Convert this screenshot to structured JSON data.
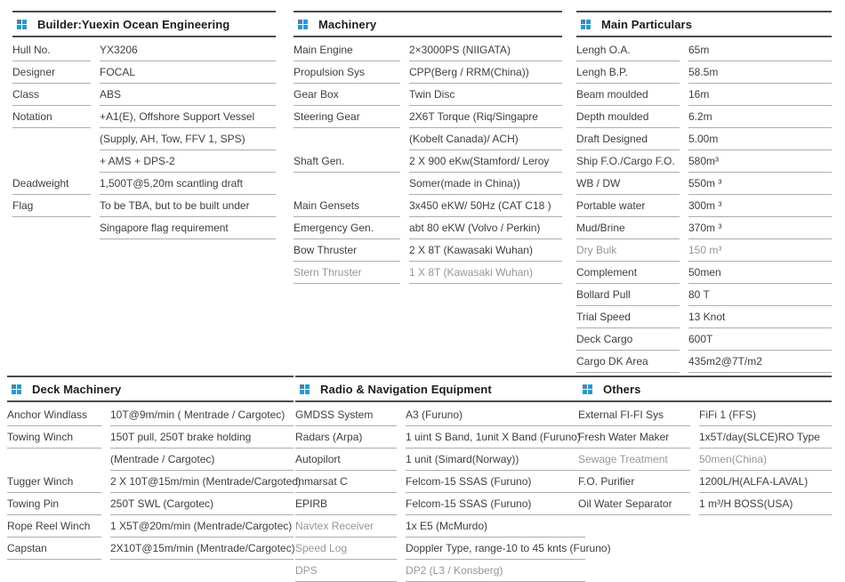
{
  "theme": {
    "background": "#ffffff",
    "icon_blue": "#1e9bd7",
    "icon_muted": "#5f7d97",
    "header_rule": "#4b4b4b",
    "row_line": "#adadad",
    "text_dark": "#3e3e3e",
    "text_muted": "#969696",
    "title_color": "#1c1c1c"
  },
  "sections": [
    {
      "id": "builder",
      "title": "Builder:Yuexin Ocean Engineering",
      "entries": [
        {
          "label": "Hull No.",
          "lines": [
            "YX3206"
          ]
        },
        {
          "label": "Designer",
          "lines": [
            "FOCAL"
          ]
        },
        {
          "label": "Class",
          "lines": [
            "ABS"
          ]
        },
        {
          "label": "Notation",
          "lines": [
            "+A1(E), Offshore Support Vessel",
            "(Supply, AH, Tow, FFV 1, SPS)",
            "+ AMS + DPS-2"
          ]
        },
        {
          "label": "Deadweight",
          "lines": [
            "1,500T@5,20m scantling draft"
          ]
        },
        {
          "label": "Flag",
          "lines": [
            "To be TBA, but to be built under",
            "Singapore flag requirement"
          ]
        }
      ]
    },
    {
      "id": "machinery",
      "title": "Machinery",
      "entries": [
        {
          "label": "Main Engine",
          "lines": [
            "2×3000PS (NIIGATA)"
          ]
        },
        {
          "label": "Propulsion Sys",
          "lines": [
            "CPP(Berg / RRM(China))"
          ]
        },
        {
          "label": "Gear Box",
          "lines": [
            "Twin Disc"
          ]
        },
        {
          "label": "Steering Gear",
          "lines": [
            "2X6T Torque (Riq/Singapre",
            "(Kobelt Canada)/ ACH)"
          ]
        },
        {
          "label": "Shaft Gen.",
          "lines": [
            "2 X 900 eKw(Stamford/ Leroy",
            "Somer(made in China))"
          ]
        },
        {
          "label": "Main Gensets",
          "lines": [
            "3x450 eKW/ 50Hz (CAT C18 )"
          ]
        },
        {
          "label": "Emergency Gen.",
          "lines": [
            "abt 80 eKW (Volvo / Perkin)"
          ]
        },
        {
          "label": "Bow Thruster",
          "lines": [
            "2 X 8T (Kawasaki Wuhan)"
          ]
        },
        {
          "label": "Stern Thruster",
          "lines": [
            "1 X 8T (Kawasaki Wuhan)"
          ],
          "muted": true
        }
      ]
    },
    {
      "id": "particulars",
      "title": "Main Particulars",
      "entries": [
        {
          "label": "Lengh O.A.",
          "lines": [
            "65m"
          ]
        },
        {
          "label": "Lengh B.P.",
          "lines": [
            "58.5m"
          ]
        },
        {
          "label": "Beam moulded",
          "lines": [
            "16m"
          ]
        },
        {
          "label": "Depth moulded",
          "lines": [
            "6.2m"
          ]
        },
        {
          "label": "Draft Designed",
          "lines": [
            "5.00m"
          ]
        },
        {
          "label": "Ship F.O./Cargo F.O.",
          "lines": [
            "580m³"
          ]
        },
        {
          "label": "WB / DW",
          "lines": [
            "550m ³"
          ]
        },
        {
          "label": "Portable water",
          "lines": [
            "300m ³"
          ]
        },
        {
          "label": "Mud/Brine",
          "lines": [
            "370m ³"
          ]
        },
        {
          "label": "Dry Bulk",
          "lines": [
            "150 m³"
          ],
          "muted": true
        },
        {
          "label": "Complement",
          "lines": [
            "50men"
          ]
        },
        {
          "label": "Bollard Pull",
          "lines": [
            "80 T"
          ]
        },
        {
          "label": "Trial Speed",
          "lines": [
            "13 Knot"
          ]
        },
        {
          "label": "Deck Cargo",
          "lines": [
            "600T"
          ]
        },
        {
          "label": "Cargo DK Area",
          "lines": [
            "435m2@7T/m2"
          ]
        }
      ]
    },
    {
      "id": "deck",
      "title": "Deck Machinery",
      "entries": [
        {
          "label": "Anchor Windlass",
          "lines": [
            "10T@9m/min ( Mentrade / Cargotec)"
          ]
        },
        {
          "label": "Towing Winch",
          "lines": [
            "150T pull, 250T brake holding",
            "(Mentrade / Cargotec)"
          ]
        },
        {
          "label": "Tugger Winch",
          "lines": [
            "2 X 10T@15m/min (Mentrade/Cargotec)"
          ]
        },
        {
          "label": "Towing Pin",
          "lines": [
            "250T SWL (Cargotec)"
          ]
        },
        {
          "label": "Rope Reel Winch",
          "lines": [
            "1 X5T@20m/min (Mentrade/Cargotec)"
          ]
        },
        {
          "label": "Capstan",
          "lines": [
            "2X10T@15m/min (Mentrade/Cargotec)"
          ]
        }
      ]
    },
    {
      "id": "radio",
      "title": "Radio & Navigation Equipment",
      "entries": [
        {
          "label": "GMDSS System",
          "lines": [
            "A3 (Furuno)"
          ]
        },
        {
          "label": "Radars (Arpa)",
          "lines": [
            "1 uint S Band, 1unit X Band (Furuno)"
          ]
        },
        {
          "label": "Autopilort",
          "lines": [
            "1 unit (Simard(Norway))"
          ]
        },
        {
          "label": "Inmarsat C",
          "lines": [
            "Felcom-15 SSAS (Furuno)"
          ]
        },
        {
          "label": "EPIRB",
          "lines": [
            "Felcom-15 SSAS (Furuno)"
          ]
        },
        {
          "label": "Navtex Receiver",
          "lines": [
            "1x E5 (McMurdo)"
          ],
          "label_muted": true
        },
        {
          "label": "Speed Log",
          "lines": [
            "Doppler Type, range-10 to 45 knts (Furuno)"
          ],
          "label_muted": true
        },
        {
          "label": "DPS",
          "lines": [
            "DP2 (L3 / Konsberg)"
          ],
          "muted": true
        }
      ]
    },
    {
      "id": "others",
      "title": "Others",
      "entries": [
        {
          "label": "External FI-FI Sys",
          "lines": [
            "FiFi 1 (FFS)"
          ]
        },
        {
          "label": "Fresh Water Maker",
          "lines": [
            "1x5T/day(SLCE)RO Type"
          ]
        },
        {
          "label": "Sewage Treatment",
          "lines": [
            "50men(China)"
          ],
          "muted": true
        },
        {
          "label": "F.O. Purifier",
          "lines": [
            "1200L/H(ALFA-LAVAL)"
          ]
        },
        {
          "label": "Oil Water Separator",
          "lines": [
            "1 m³/H BOSS(USA)"
          ]
        }
      ]
    }
  ]
}
